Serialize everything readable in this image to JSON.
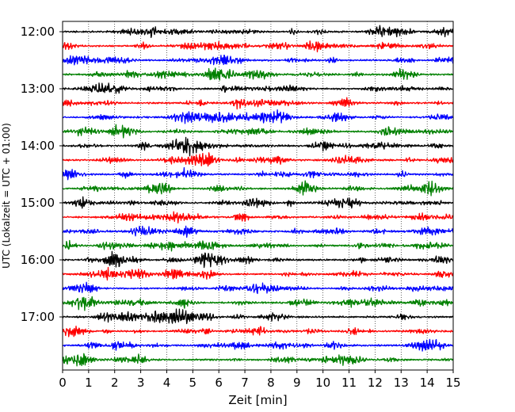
{
  "chart_data": {
    "type": "line",
    "title": "",
    "xlabel": "Zeit  [min]",
    "ylabel": "UTC (Lokalzeit = UTC + 01:00)",
    "xlim": [
      0,
      15
    ],
    "x_ticks": [
      "0",
      "1",
      "2",
      "3",
      "4",
      "5",
      "6",
      "7",
      "8",
      "9",
      "10",
      "11",
      "12",
      "13",
      "14",
      "15"
    ],
    "y_ticks": [
      "12:00",
      "13:00",
      "14:00",
      "15:00",
      "16:00",
      "17:00"
    ],
    "grid": "vertical dotted lines at each minute",
    "trace_interval_minutes": 15,
    "trace_colors": [
      "#000000",
      "#ff0000",
      "#0000ff",
      "#008000"
    ],
    "traces": [
      {
        "start": "12:00",
        "color": "#000000"
      },
      {
        "start": "12:15",
        "color": "#ff0000"
      },
      {
        "start": "12:30",
        "color": "#0000ff"
      },
      {
        "start": "12:45",
        "color": "#008000"
      },
      {
        "start": "13:00",
        "color": "#000000"
      },
      {
        "start": "13:15",
        "color": "#ff0000"
      },
      {
        "start": "13:30",
        "color": "#0000ff"
      },
      {
        "start": "13:45",
        "color": "#008000"
      },
      {
        "start": "14:00",
        "color": "#000000"
      },
      {
        "start": "14:15",
        "color": "#ff0000"
      },
      {
        "start": "14:30",
        "color": "#0000ff"
      },
      {
        "start": "14:45",
        "color": "#008000"
      },
      {
        "start": "15:00",
        "color": "#000000"
      },
      {
        "start": "15:15",
        "color": "#ff0000"
      },
      {
        "start": "15:30",
        "color": "#0000ff"
      },
      {
        "start": "15:45",
        "color": "#008000"
      },
      {
        "start": "16:00",
        "color": "#000000"
      },
      {
        "start": "16:15",
        "color": "#ff0000"
      },
      {
        "start": "16:30",
        "color": "#0000ff"
      },
      {
        "start": "16:45",
        "color": "#008000"
      },
      {
        "start": "17:00",
        "color": "#000000"
      },
      {
        "start": "17:15",
        "color": "#ff0000"
      },
      {
        "start": "17:30",
        "color": "#0000ff"
      },
      {
        "start": "17:45",
        "color": "#008000"
      }
    ]
  }
}
